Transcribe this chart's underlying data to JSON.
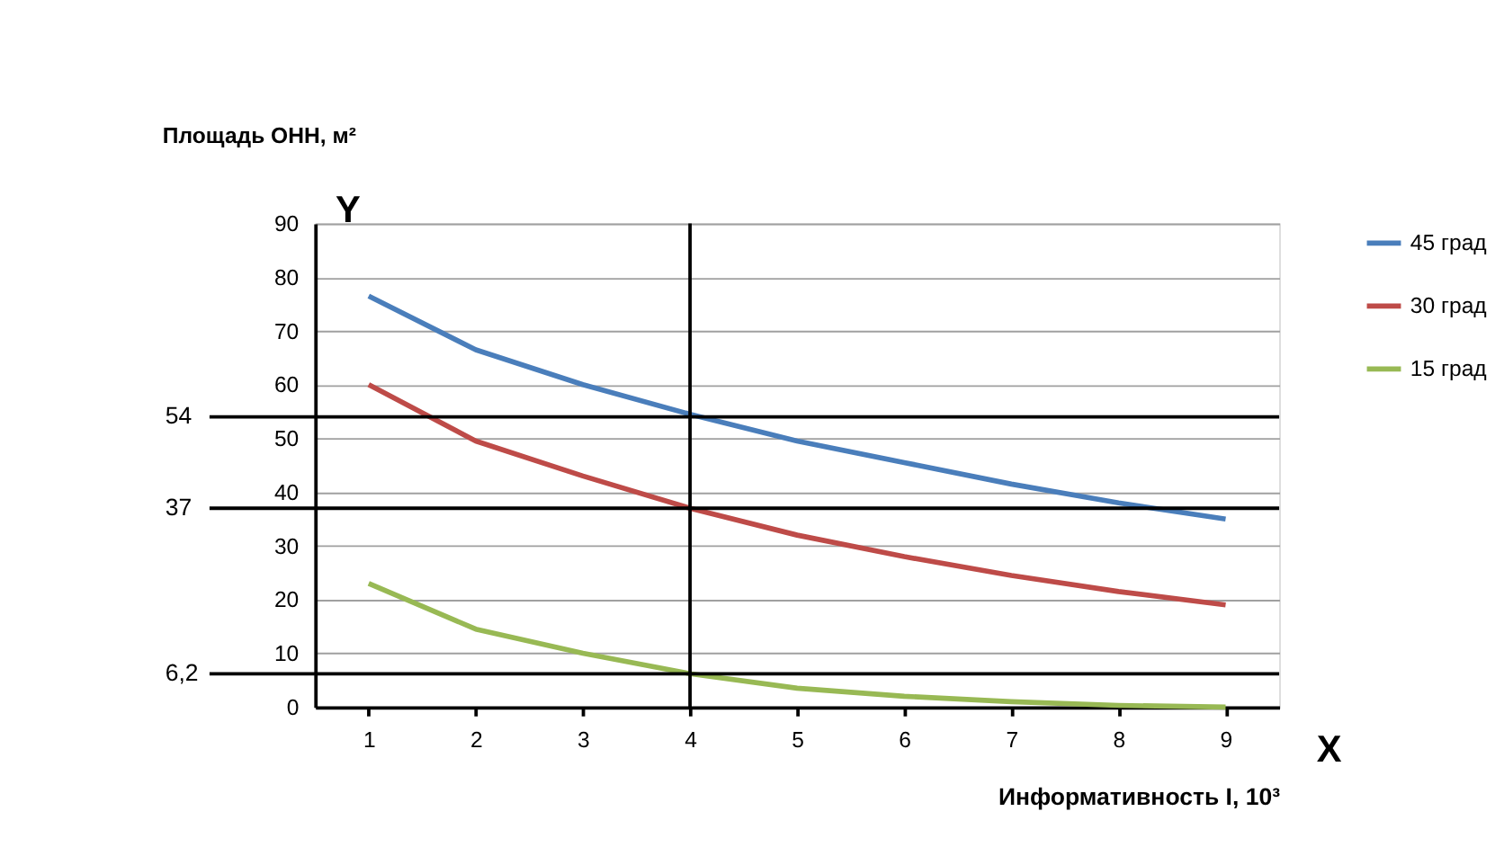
{
  "chart_data": {
    "type": "line",
    "ylabel": "Площадь ОНН, м²",
    "xlabel": "Информативность I, 10³",
    "x": [
      1,
      2,
      3,
      4,
      5,
      6,
      7,
      8,
      9
    ],
    "series": [
      {
        "name": "45 град",
        "color": "#4a7ebb",
        "values": [
          76.5,
          66.5,
          60,
          54.5,
          49.5,
          45.5,
          41.5,
          38,
          35
        ]
      },
      {
        "name": "30 град",
        "color": "#be4b48",
        "values": [
          60,
          49.5,
          43,
          37,
          32,
          28,
          24.5,
          21.5,
          19
        ]
      },
      {
        "name": "15 град",
        "color": "#98b954",
        "values": [
          23,
          14.5,
          10,
          6.2,
          3.5,
          2,
          1,
          0.3,
          0
        ]
      }
    ],
    "xlim": [
      0.5,
      9.5
    ],
    "xticks": [
      1,
      2,
      3,
      4,
      5,
      6,
      7,
      8,
      9
    ],
    "ylim": [
      0,
      90
    ],
    "yticks": [
      0,
      10,
      20,
      30,
      40,
      50,
      60,
      70,
      80,
      90
    ],
    "ref_lines": [
      {
        "axis": "y",
        "value": 54,
        "label": "54",
        "color": "#000000"
      },
      {
        "axis": "y",
        "value": 37,
        "label": "37",
        "color": "#000000"
      },
      {
        "axis": "y",
        "value": 6.2,
        "label": "6,2",
        "color": "#000000"
      },
      {
        "axis": "x",
        "value": 4,
        "color": "#000000"
      }
    ],
    "annotations": [
      "Y",
      "X"
    ],
    "grid": "y",
    "legend": "right",
    "marker": "none",
    "line_style": "solid"
  }
}
